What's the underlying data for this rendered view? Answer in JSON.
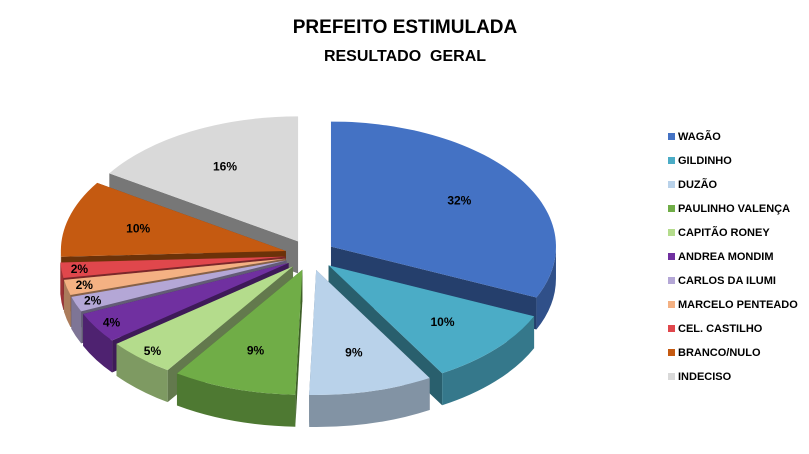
{
  "chart_data": {
    "type": "pie",
    "title": "PREFEITO ESTIMULADA",
    "subtitle": "RESULTADO  GERAL",
    "legend_position": "right",
    "categories": [
      "WAGÃO",
      "GILDINHO",
      "DUZÃO",
      "PAULINHO VALENÇA",
      "CAPITÃO RONEY",
      "ANDREA MONDIM",
      "CARLOS DA ILUMI",
      "MARCELO PENTEADO",
      "CEL. CASTILHO",
      "BRANCO/NULO",
      "INDECISO"
    ],
    "values": [
      32,
      10,
      9,
      9,
      5,
      4,
      2,
      2,
      2,
      10,
      16
    ],
    "labels": [
      "32%",
      "10%",
      "9%",
      "9%",
      "5%",
      "4%",
      "2%",
      "2%",
      "2%",
      "10%",
      "16%"
    ],
    "colors": [
      "#4472C4",
      "#4BACC6",
      "#B9D2EA",
      "#70AD47",
      "#B4DC8C",
      "#7030A0",
      "#B4A7D6",
      "#F4B183",
      "#E0474C",
      "#C55A11",
      "#D9D9D9"
    ]
  }
}
